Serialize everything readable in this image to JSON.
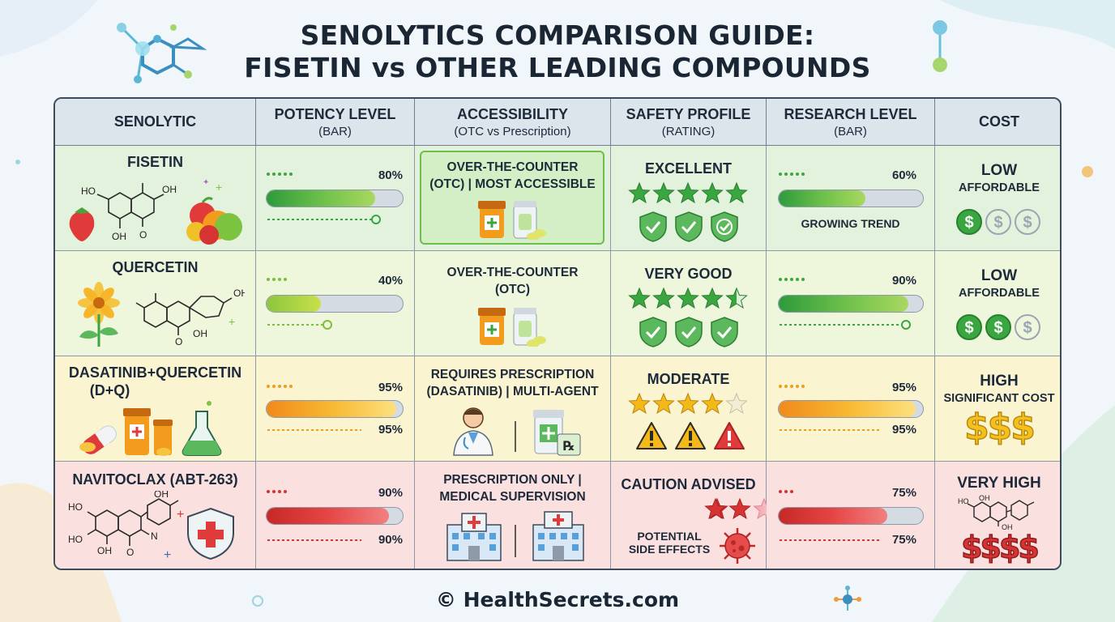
{
  "title_line1": "SENOLYTICS COMPARISON GUIDE:",
  "title_line2": "FISETIN vs OTHER LEADING COMPOUNDS",
  "footer": "© HealthSecrets.com",
  "headers": [
    {
      "main": "SENOLYTIC",
      "sub": ""
    },
    {
      "main": "POTENCY LEVEL",
      "sub": "(BAR)"
    },
    {
      "main": "ACCESSIBILITY",
      "sub": "(OTC vs Prescription)"
    },
    {
      "main": "SAFETY PROFILE",
      "sub": "(RATING)"
    },
    {
      "main": "RESEARCH LEVEL",
      "sub": "(BAR)"
    },
    {
      "main": "COST",
      "sub": ""
    }
  ],
  "rows": [
    {
      "name": "FISETIN",
      "potency": {
        "label": "80%",
        "value": 0.8
      },
      "access_line1": "OVER-THE-COUNTER",
      "access_line2": "(OTC) | MOST ACCESSIBLE",
      "safety": {
        "label": "EXCELLENT",
        "stars": 5
      },
      "research": {
        "label": "60%",
        "value": 0.6,
        "note": "GROWING TREND"
      },
      "cost": {
        "level": "LOW",
        "desc": "AFFORDABLE",
        "symbol": "$",
        "filled": 1
      }
    },
    {
      "name": "QUERCETIN",
      "potency": {
        "label": "40%",
        "value": 0.4
      },
      "access_line1": "OVER-THE-COUNTER",
      "access_line2": "(OTC)",
      "safety": {
        "label": "VERY GOOD",
        "stars": 4.5
      },
      "research": {
        "label": "90%",
        "value": 0.9,
        "note": ""
      },
      "cost": {
        "level": "LOW",
        "desc": "AFFORDABLE",
        "symbol": "$",
        "filled": 2
      }
    },
    {
      "name": "DASATINIB+QUERCETIN",
      "name2": "(D+Q)",
      "potency": {
        "label": "95%",
        "value": 0.95,
        "label2": "95%"
      },
      "access_line1": "REQUIRES PRESCRIPTION",
      "access_line2": "(DASATINIB) | MULTI-AGENT",
      "safety": {
        "label": "MODERATE",
        "stars": 4
      },
      "research": {
        "label": "95%",
        "value": 0.95,
        "label2": "95%"
      },
      "cost": {
        "level": "HIGH",
        "desc": "SIGNIFICANT COST",
        "symbol": "$$$"
      }
    },
    {
      "name": "NAVITOCLAX (ABT-263)",
      "potency": {
        "label": "90%",
        "value": 0.9,
        "label2": "90%"
      },
      "access_line1": "PRESCRIPTION ONLY |",
      "access_line2": "MEDICAL SUPERVISION",
      "safety": {
        "label": "CAUTION ADVISED",
        "stars": 2.5,
        "note_line1": "POTENTIAL",
        "note_line2": "SIDE EFFECTS"
      },
      "research": {
        "label": "75%",
        "value": 0.75,
        "label2": "75%"
      },
      "cost": {
        "level": "VERY HIGH",
        "desc": "",
        "symbol": "$$$$"
      }
    }
  ],
  "chem_labels": {
    "fisetin": [
      "HO",
      "OH",
      "OH",
      "O"
    ],
    "quercetin": [
      "OH",
      "OH",
      "O"
    ],
    "navitoclax": [
      "HO",
      "OH",
      "HO",
      "OH",
      "N",
      "O"
    ],
    "cost_molecule": [
      "HO",
      "OH",
      "OH"
    ]
  },
  "rx_symbol": "℞",
  "colors": {
    "green": "#3aa63f",
    "yellow_green": "#a9cf2f",
    "orange": "#f39b1c",
    "red": "#d63434",
    "header_bg": "#dce4ec",
    "star_green": "#3aa63f",
    "star_gold": "#f5b819"
  }
}
